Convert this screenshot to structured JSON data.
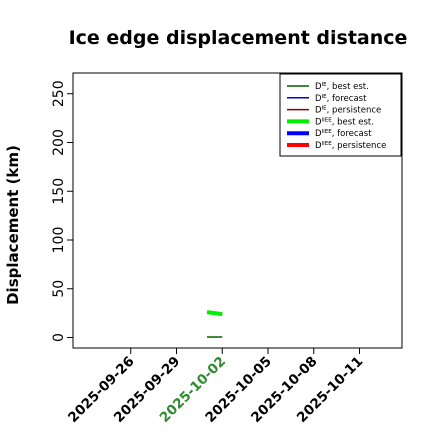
{
  "chart_data": {
    "type": "line",
    "title": "Ice edge displacement distance",
    "xlabel": "",
    "ylabel": "Displacement (km)",
    "xlim": [
      "2025-09-23",
      "2025-10-13"
    ],
    "ylim": [
      0,
      260
    ],
    "yticks": [
      "0",
      "50",
      "100",
      "150",
      "200",
      "250"
    ],
    "xticks": [
      {
        "date": "2025-09-26",
        "label": "2025-09-26",
        "color": "#000000"
      },
      {
        "date": "2025-09-29",
        "label": "2025-09-29",
        "color": "#000000"
      },
      {
        "date": "2025-10-02",
        "label": "2025-10-02",
        "color": "#2e8b2e"
      },
      {
        "date": "2025-10-05",
        "label": "2025-10-05",
        "color": "#000000"
      },
      {
        "date": "2025-10-08",
        "label": "2025-10-08",
        "color": "#000000"
      },
      {
        "date": "2025-10-11",
        "label": "2025-10-11",
        "color": "#000000"
      }
    ],
    "legend_position": "top-right",
    "legend": [
      {
        "sup": "IE",
        "suffix": ", best est.",
        "color": "#006400",
        "width": 1.5
      },
      {
        "sup": "IE",
        "suffix": ", forecast",
        "color": "#0000cd",
        "width": 1.5
      },
      {
        "sup": "IE",
        "suffix": ", persistence",
        "color": "#8b0000",
        "width": 1.5
      },
      {
        "sup": "IIEE",
        "suffix": ", best est.",
        "color": "#00ee00",
        "width": 4
      },
      {
        "sup": "IIEE",
        "suffix": ", forecast",
        "color": "#0000ff",
        "width": 4
      },
      {
        "sup": "IIEE",
        "suffix": ", persistence",
        "color": "#ff0000",
        "width": 4
      }
    ],
    "series": [
      {
        "color": "#006400",
        "width": 1.5,
        "points": [
          {
            "x": "2025-10-01",
            "y": 0.5
          },
          {
            "x": "2025-10-02",
            "y": 0.5
          }
        ]
      },
      {
        "color": "#00ee00",
        "width": 4,
        "points": [
          {
            "x": "2025-10-01",
            "y": 26
          },
          {
            "x": "2025-10-02",
            "y": 24
          }
        ]
      }
    ]
  }
}
